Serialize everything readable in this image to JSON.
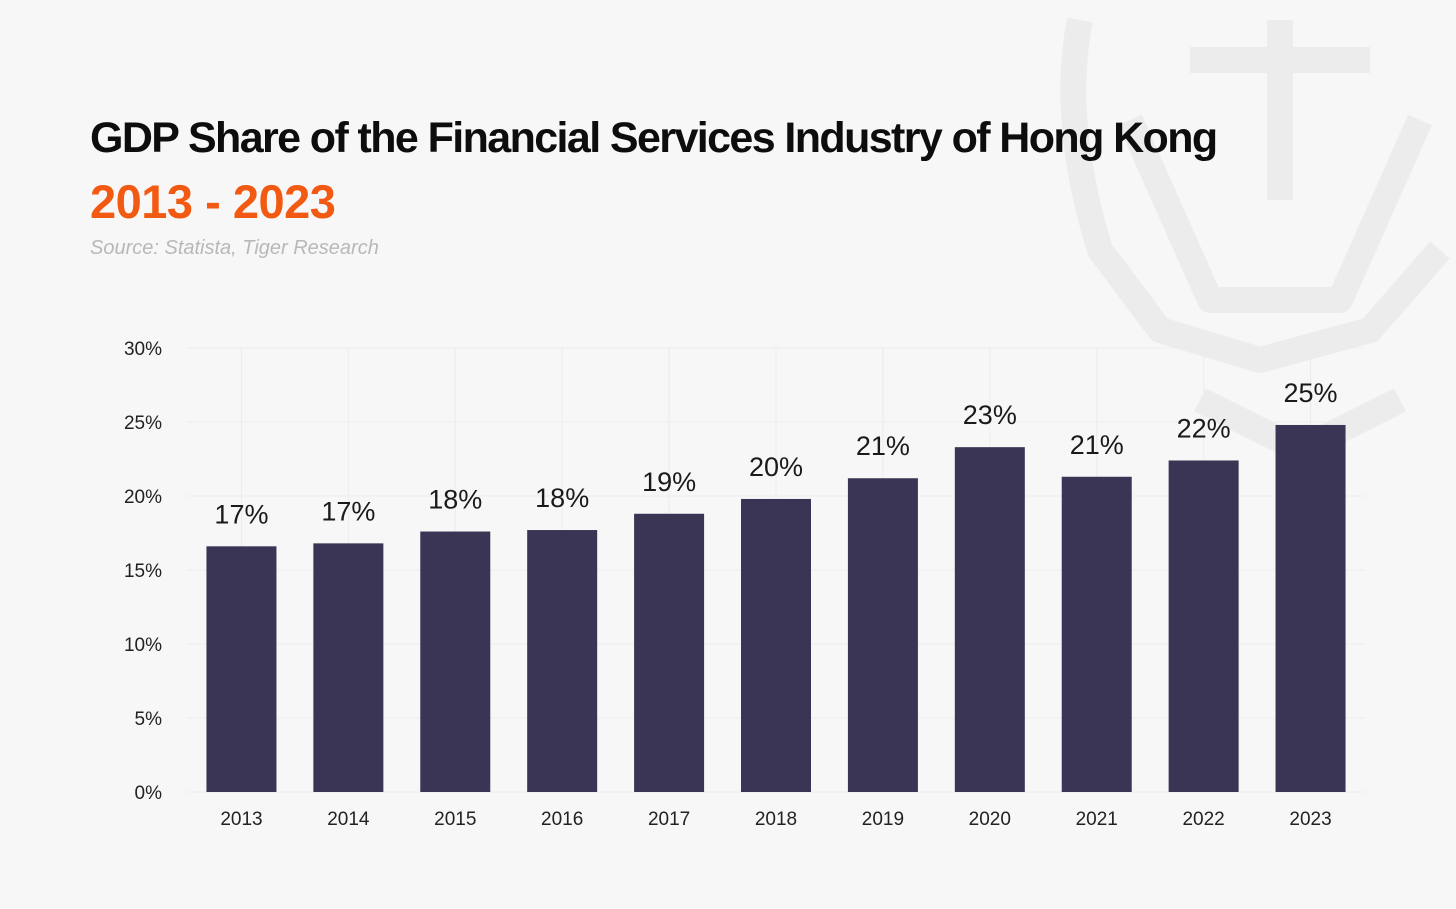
{
  "header": {
    "title": "GDP Share of the Financial Services Industry of Hong Kong",
    "subtitle": "2013 - 2023",
    "source": "Source: Statista, Tiger Research"
  },
  "colors": {
    "bar": "#3a3554",
    "accent": "#f25a13",
    "grid": "#ececec",
    "background": "#f7f7f7"
  },
  "chart_data": {
    "type": "bar",
    "categories": [
      "2013",
      "2014",
      "2015",
      "2016",
      "2017",
      "2018",
      "2019",
      "2020",
      "2021",
      "2022",
      "2023"
    ],
    "values": [
      16.6,
      16.8,
      17.6,
      17.7,
      18.8,
      19.8,
      21.2,
      23.3,
      21.3,
      22.4,
      24.8
    ],
    "value_labels": [
      "17%",
      "17%",
      "18%",
      "18%",
      "19%",
      "20%",
      "21%",
      "23%",
      "21%",
      "22%",
      "25%"
    ],
    "yticks": [
      "0%",
      "5%",
      "10%",
      "15%",
      "20%",
      "25%",
      "30%"
    ],
    "ylim": [
      0,
      30
    ],
    "grid": true
  }
}
